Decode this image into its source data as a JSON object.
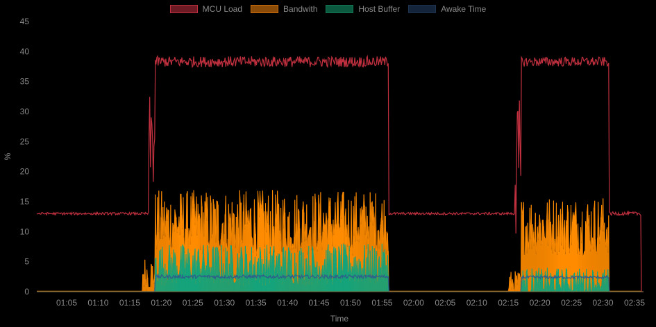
{
  "chart_data": {
    "type": "line",
    "title": "",
    "xlabel": "Time",
    "ylabel": "%",
    "ylim": [
      0,
      45
    ],
    "yticks": [
      0,
      5,
      10,
      15,
      20,
      25,
      30,
      35,
      40,
      45
    ],
    "xticks": [
      "01:05",
      "01:10",
      "01:15",
      "01:20",
      "01:25",
      "01:30",
      "01:35",
      "01:40",
      "01:45",
      "01:50",
      "01:55",
      "02:00",
      "02:05",
      "02:10",
      "02:15",
      "02:20",
      "02:25",
      "02:30",
      "02:35"
    ],
    "grid": false,
    "legend_position": "top",
    "background": "#000000",
    "series": [
      {
        "name": "MCU Load",
        "color": "#c0303f",
        "fill": "#6e1a24",
        "style": "line",
        "segments": [
          {
            "from": "01:00",
            "to": "01:18",
            "value": 13.0,
            "noise": 0.2
          },
          {
            "from": "01:18",
            "to": "01:19",
            "value": 25.0,
            "noise": 8
          },
          {
            "from": "01:19",
            "to": "01:56",
            "value": 38.3,
            "noise": 0.9
          },
          {
            "from": "01:56",
            "to": "02:16",
            "value": 13.0,
            "noise": 0.2
          },
          {
            "from": "02:16",
            "to": "02:17",
            "value": 20.0,
            "noise": 12
          },
          {
            "from": "02:17",
            "to": "02:31",
            "value": 38.3,
            "noise": 0.8
          },
          {
            "from": "02:31",
            "to": "02:36",
            "value": 13.0,
            "noise": 0.3
          }
        ]
      },
      {
        "name": "Bandwith",
        "color": "#ff8c00",
        "fill": "#8a4a08",
        "style": "area",
        "segments": [
          {
            "from": "01:00",
            "to": "01:17",
            "value": 0.1,
            "noise": 0
          },
          {
            "from": "01:17",
            "to": "01:19",
            "value": 3.0,
            "noise": 3
          },
          {
            "from": "01:19",
            "to": "01:56",
            "value": 11.5,
            "noise": 5.5
          },
          {
            "from": "01:56",
            "to": "02:15",
            "value": 0.1,
            "noise": 0
          },
          {
            "from": "02:15",
            "to": "02:17",
            "value": 1.5,
            "noise": 2
          },
          {
            "from": "02:17",
            "to": "02:31",
            "value": 11.0,
            "noise": 5
          },
          {
            "from": "02:31",
            "to": "02:36",
            "value": 0.1,
            "noise": 0
          }
        ]
      },
      {
        "name": "Host Buffer",
        "color": "#14a37a",
        "fill": "#0b5a40",
        "style": "area",
        "segments": [
          {
            "from": "01:00",
            "to": "01:19",
            "value": 0,
            "noise": 0
          },
          {
            "from": "01:19",
            "to": "01:56",
            "value": 4.5,
            "noise": 3.5
          },
          {
            "from": "01:56",
            "to": "02:17",
            "value": 0,
            "noise": 0
          },
          {
            "from": "02:17",
            "to": "02:31",
            "value": 1.5,
            "noise": 2.5
          },
          {
            "from": "02:31",
            "to": "02:36",
            "value": 0,
            "noise": 0
          }
        ]
      },
      {
        "name": "Awake Time",
        "color": "#2f5c8c",
        "fill": "#14243a",
        "style": "line",
        "segments": [
          {
            "from": "01:00",
            "to": "01:19",
            "value": 0,
            "noise": 0
          },
          {
            "from": "01:19",
            "to": "01:56",
            "value": 2.5,
            "noise": 0.3
          },
          {
            "from": "01:56",
            "to": "02:17",
            "value": 0,
            "noise": 0
          },
          {
            "from": "02:17",
            "to": "02:31",
            "value": 2.4,
            "noise": 0.25
          },
          {
            "from": "02:31",
            "to": "02:36",
            "value": 0,
            "noise": 0
          }
        ]
      }
    ]
  },
  "legend": {
    "items": [
      {
        "label": "MCU Load"
      },
      {
        "label": "Bandwith"
      },
      {
        "label": "Host Buffer"
      },
      {
        "label": "Awake Time"
      }
    ]
  },
  "axes": {
    "x_title": "Time",
    "y_title": "%"
  }
}
